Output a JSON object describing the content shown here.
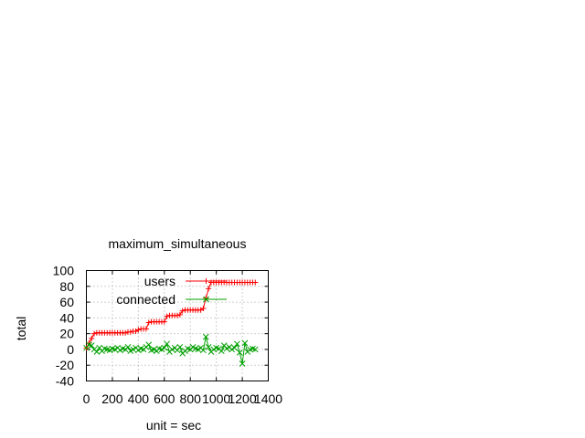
{
  "chart_data": {
    "type": "line",
    "title": "maximum_simultaneous",
    "xlabel": "unit = sec",
    "ylabel": "total",
    "xlim": [
      0,
      1400
    ],
    "ylim": [
      -40,
      100
    ],
    "x_ticks": [
      "0",
      "200",
      "400",
      "600",
      "800",
      "1000",
      "1200",
      "1400"
    ],
    "y_ticks": [
      "100",
      "80",
      "60",
      "40",
      "20",
      "0",
      "-20",
      "-40"
    ],
    "grid": true,
    "legend_position": "top-right",
    "series": [
      {
        "name": "users",
        "color": "#ff0000",
        "marker": "plus",
        "x": [
          0,
          20,
          40,
          60,
          80,
          100,
          120,
          140,
          160,
          180,
          200,
          220,
          240,
          260,
          280,
          300,
          320,
          340,
          360,
          380,
          400,
          420,
          440,
          460,
          480,
          500,
          520,
          540,
          560,
          580,
          600,
          620,
          640,
          660,
          680,
          700,
          720,
          740,
          760,
          780,
          800,
          820,
          840,
          860,
          880,
          900,
          920,
          940,
          960,
          980,
          1000,
          1020,
          1040,
          1060,
          1080,
          1100,
          1120,
          1140,
          1160,
          1180,
          1200,
          1220,
          1240,
          1260,
          1280,
          1300
        ],
        "y": [
          2,
          8,
          14,
          20,
          21,
          21,
          21,
          21,
          21,
          21,
          21,
          21,
          21,
          21,
          21,
          21,
          22,
          22,
          23,
          23,
          25,
          26,
          26,
          26,
          34,
          35,
          35,
          35,
          35,
          35,
          35,
          42,
          43,
          43,
          43,
          43,
          44,
          49,
          50,
          50,
          50,
          50,
          50,
          50,
          50,
          52,
          65,
          77,
          85,
          85,
          85,
          85,
          85,
          85,
          85,
          85,
          85,
          85,
          85,
          85,
          85,
          85,
          85,
          85,
          85,
          85
        ]
      },
      {
        "name": "connected",
        "color": "#00a000",
        "marker": "cross",
        "x": [
          0,
          20,
          40,
          60,
          80,
          100,
          120,
          140,
          160,
          180,
          200,
          220,
          240,
          260,
          280,
          300,
          320,
          340,
          360,
          380,
          400,
          420,
          440,
          460,
          480,
          500,
          520,
          540,
          560,
          580,
          600,
          620,
          640,
          660,
          680,
          700,
          720,
          740,
          760,
          780,
          800,
          820,
          840,
          860,
          880,
          900,
          920,
          940,
          960,
          980,
          1000,
          1020,
          1040,
          1060,
          1080,
          1100,
          1120,
          1140,
          1160,
          1180,
          1200,
          1220,
          1240,
          1260,
          1280,
          1300
        ],
        "y": [
          2,
          6,
          5,
          0,
          -3,
          2,
          -2,
          1,
          0,
          -1,
          1,
          0,
          2,
          -1,
          1,
          0,
          3,
          -2,
          0,
          2,
          -1,
          1,
          0,
          3,
          6,
          -1,
          0,
          -2,
          1,
          0,
          2,
          7,
          -3,
          0,
          2,
          -1,
          3,
          -5,
          -2,
          1,
          0,
          3,
          1,
          0,
          2,
          -1,
          16,
          3,
          -3,
          0,
          2,
          1,
          -2,
          5,
          1,
          3,
          0,
          2,
          7,
          -4,
          -18,
          8,
          -3,
          0,
          1,
          0
        ]
      }
    ]
  }
}
